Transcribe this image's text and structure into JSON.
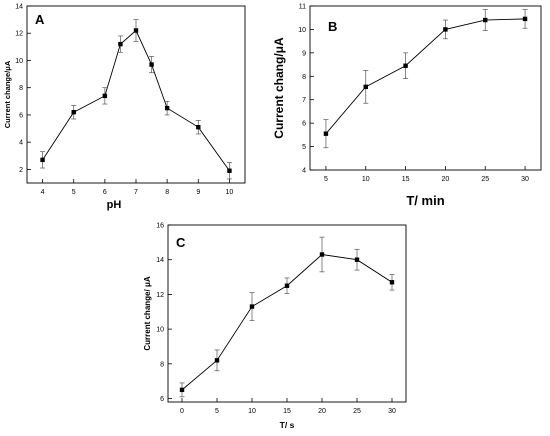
{
  "chart_data": [
    {
      "type": "line",
      "panel_label": "A",
      "xlabel": "pH",
      "ylabel": "Current change/μA",
      "xlim": [
        3.5,
        10.5
      ],
      "ylim": [
        1,
        14
      ],
      "xticks": [
        4,
        5,
        6,
        7,
        8,
        9,
        10
      ],
      "yticks": [
        2,
        4,
        6,
        8,
        10,
        12,
        14
      ],
      "grid": false,
      "series": [
        {
          "x": [
            4,
            5,
            6,
            6.5,
            7,
            7.5,
            8,
            9,
            10
          ],
          "y": [
            2.7,
            6.2,
            7.4,
            11.2,
            12.2,
            9.7,
            6.5,
            5.1,
            1.9
          ],
          "error": [
            0.6,
            0.5,
            0.6,
            0.6,
            0.8,
            0.6,
            0.5,
            0.5,
            0.6
          ]
        }
      ]
    },
    {
      "type": "line",
      "panel_label": "B",
      "xlabel": "T/ min",
      "ylabel": "Current chang/μA",
      "xlim": [
        3,
        32
      ],
      "ylim": [
        4,
        11
      ],
      "xticks": [
        5,
        10,
        15,
        20,
        25,
        30
      ],
      "yticks": [
        4,
        5,
        6,
        7,
        8,
        9,
        10,
        11
      ],
      "grid": false,
      "series": [
        {
          "x": [
            5,
            10,
            15,
            20,
            25,
            30
          ],
          "y": [
            5.55,
            7.55,
            8.45,
            10.0,
            10.4,
            10.45
          ],
          "error": [
            0.6,
            0.7,
            0.55,
            0.4,
            0.45,
            0.4
          ]
        }
      ]
    },
    {
      "type": "line",
      "panel_label": "C",
      "xlabel": "T/ s",
      "ylabel": "Current change/ μA",
      "xlim": [
        -2,
        32
      ],
      "ylim": [
        5.8,
        16
      ],
      "xticks": [
        0,
        5,
        10,
        15,
        20,
        25,
        30
      ],
      "yticks": [
        6,
        8,
        10,
        12,
        14,
        16
      ],
      "grid": false,
      "series": [
        {
          "x": [
            0,
            5,
            10,
            15,
            20,
            25,
            30
          ],
          "y": [
            6.5,
            8.2,
            11.3,
            12.5,
            14.3,
            14.0,
            12.7
          ],
          "error": [
            0.4,
            0.6,
            0.8,
            0.45,
            1.0,
            0.6,
            0.45
          ]
        }
      ]
    }
  ]
}
